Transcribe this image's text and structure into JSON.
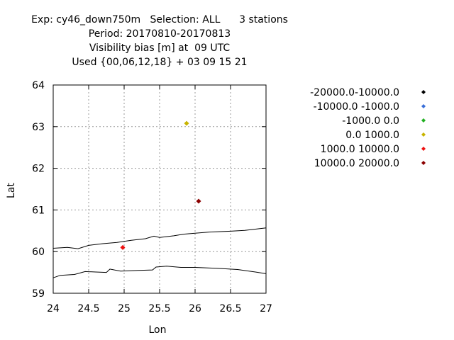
{
  "title_lines": [
    "Exp: cy46_down750m   Selection: ALL      3 stations",
    "Period: 20170810-20170813",
    "Visibility bias [m] at  09 UTC",
    "Used {00,06,12,18} + 03 09 15 21"
  ],
  "chart_data": {
    "type": "scatter",
    "xlabel": "Lon",
    "ylabel": "Lat",
    "xlim": [
      24,
      27
    ],
    "ylim": [
      59,
      64
    ],
    "xticks": [
      "24",
      "24.5",
      "25",
      "25.5",
      "26",
      "26.5",
      "27"
    ],
    "yticks": [
      "59",
      "60",
      "61",
      "62",
      "63",
      "64"
    ],
    "grid": true,
    "legend_position": "right",
    "legend": [
      {
        "label": "-20000.0-10000.0",
        "color": "#000000"
      },
      {
        "label": "-10000.0 -1000.0",
        "color": "#3a6fd8"
      },
      {
        "label": "-1000.0 0.0",
        "color": "#22b022"
      },
      {
        "label": "0.0 1000.0",
        "color": "#c8b400"
      },
      {
        "label": "1000.0 10000.0",
        "color": "#ee1111"
      },
      {
        "label": "10000.0 20000.0",
        "color": "#8b0000"
      }
    ],
    "points": [
      {
        "lon": 25.88,
        "lat": 63.08,
        "class": "0.0 1000.0",
        "color": "#c8b400"
      },
      {
        "lon": 26.05,
        "lat": 61.21,
        "class": "10000.0 20000.0",
        "color": "#8b0000"
      },
      {
        "lon": 24.98,
        "lat": 60.1,
        "class": "1000.0 10000.0",
        "color": "#ee1111"
      }
    ],
    "coastlines": [
      [
        [
          24.0,
          60.08
        ],
        [
          24.2,
          60.1
        ],
        [
          24.35,
          60.07
        ],
        [
          24.5,
          60.15
        ],
        [
          24.7,
          60.19
        ],
        [
          24.9,
          60.22
        ],
        [
          25.1,
          60.27
        ],
        [
          25.3,
          60.31
        ],
        [
          25.42,
          60.37
        ],
        [
          25.5,
          60.34
        ],
        [
          25.7,
          60.38
        ],
        [
          25.85,
          60.42
        ],
        [
          26.0,
          60.44
        ],
        [
          26.2,
          60.47
        ],
        [
          26.5,
          60.49
        ],
        [
          26.7,
          60.51
        ],
        [
          27.0,
          60.57
        ]
      ],
      [
        [
          24.0,
          59.37
        ],
        [
          24.1,
          59.43
        ],
        [
          24.3,
          59.45
        ],
        [
          24.45,
          59.52
        ],
        [
          24.6,
          59.51
        ],
        [
          24.75,
          59.5
        ],
        [
          24.8,
          59.58
        ],
        [
          24.95,
          59.53
        ],
        [
          25.2,
          59.55
        ],
        [
          25.4,
          59.56
        ],
        [
          25.45,
          59.63
        ],
        [
          25.6,
          59.65
        ],
        [
          25.8,
          59.62
        ],
        [
          26.0,
          59.62
        ],
        [
          26.3,
          59.6
        ],
        [
          26.6,
          59.57
        ],
        [
          26.85,
          59.51
        ],
        [
          27.0,
          59.47
        ]
      ]
    ]
  }
}
